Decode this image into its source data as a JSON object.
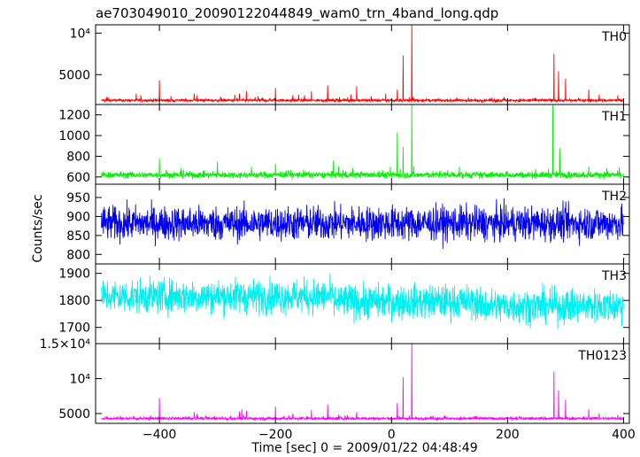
{
  "chart_data": {
    "type": "line",
    "title": "ae703049010_20090122044849_wam0_trn_4band_long.qdp",
    "xlabel": "Time [sec] 0 = 2009/01/22 04:48:49",
    "ylabel": "Counts/sec",
    "xlim": [
      -510,
      410
    ],
    "x_ticks": [
      -400,
      -200,
      0,
      200,
      400
    ],
    "x_tick_labels": [
      "−400",
      "−200",
      "0",
      "200",
      "400"
    ],
    "panels": [
      {
        "name": "TH0",
        "color": "#ff0000",
        "ylim": [
          1400,
          11000
        ],
        "y_ticks": [
          {
            "value": 5000,
            "label": "5000"
          },
          {
            "value": 10000,
            "label": "10⁴"
          }
        ],
        "baseline": 1900,
        "noise": 120,
        "shape": "spiky",
        "peaks": [
          [
            -440,
            2700
          ],
          [
            -432,
            2500
          ],
          [
            -400,
            4300
          ],
          [
            -380,
            2400
          ],
          [
            -340,
            2700
          ],
          [
            -335,
            2500
          ],
          [
            -270,
            2600
          ],
          [
            -262,
            2700
          ],
          [
            -250,
            3000
          ],
          [
            -230,
            2400
          ],
          [
            -200,
            3400
          ],
          [
            -170,
            2500
          ],
          [
            -160,
            2600
          ],
          [
            -150,
            2500
          ],
          [
            -138,
            3000
          ],
          [
            -110,
            3700
          ],
          [
            -70,
            2600
          ],
          [
            -60,
            3600
          ],
          [
            -35,
            2400
          ],
          [
            -10,
            2700
          ],
          [
            10,
            3200
          ],
          [
            20,
            7300
          ],
          [
            35,
            11000
          ],
          [
            280,
            7500
          ],
          [
            288,
            5400
          ],
          [
            300,
            4500
          ],
          [
            340,
            3200
          ],
          [
            358,
            2600
          ],
          [
            390,
            2500
          ]
        ]
      },
      {
        "name": "TH1",
        "color": "#00ee00",
        "ylim": [
          530,
          1300
        ],
        "y_ticks": [
          {
            "value": 600,
            "label": "600"
          },
          {
            "value": 800,
            "label": "800"
          },
          {
            "value": 1000,
            "label": "1000"
          },
          {
            "value": 1200,
            "label": "1200"
          }
        ],
        "baseline": 620,
        "noise": 22,
        "shape": "spiky",
        "peaks": [
          [
            -400,
            780
          ],
          [
            -300,
            750
          ],
          [
            -200,
            730
          ],
          [
            -100,
            760
          ],
          [
            10,
            1030
          ],
          [
            20,
            890
          ],
          [
            35,
            1300
          ],
          [
            278,
            1300
          ],
          [
            290,
            880
          ],
          [
            340,
            700
          ]
        ]
      },
      {
        "name": "TH2",
        "color": "#0000ee",
        "ylim": [
          775,
          985
        ],
        "y_ticks": [
          {
            "value": 800,
            "label": "800"
          },
          {
            "value": 850,
            "label": "850"
          },
          {
            "value": 900,
            "label": "900"
          },
          {
            "value": 950,
            "label": "950"
          }
        ],
        "baseline": 882,
        "noise": 32,
        "shape": "noise",
        "peaks": []
      },
      {
        "name": "TH3",
        "color": "#00eeee",
        "ylim": [
          1640,
          1935
        ],
        "y_ticks": [
          {
            "value": 1700,
            "label": "1700"
          },
          {
            "value": 1800,
            "label": "1800"
          },
          {
            "value": 1900,
            "label": "1900"
          }
        ],
        "baseline": 1800,
        "noise": 45,
        "shape": "noise-drift",
        "peaks": []
      },
      {
        "name": "TH0123",
        "color": "#ff00ff",
        "ylim": [
          3600,
          15000
        ],
        "y_ticks": [
          {
            "value": 5000,
            "label": "5000"
          },
          {
            "value": 10000,
            "label": "10⁴"
          },
          {
            "value": 15000,
            "label": "1.5×10⁴"
          }
        ],
        "baseline": 4300,
        "noise": 140,
        "shape": "spiky",
        "peaks": [
          [
            -400,
            7200
          ],
          [
            -340,
            5200
          ],
          [
            -335,
            5000
          ],
          [
            -262,
            5300
          ],
          [
            -258,
            5600
          ],
          [
            -250,
            5400
          ],
          [
            -200,
            6000
          ],
          [
            -170,
            5000
          ],
          [
            -138,
            5500
          ],
          [
            -110,
            6300
          ],
          [
            -60,
            5200
          ],
          [
            10,
            6500
          ],
          [
            20,
            10200
          ],
          [
            35,
            15000
          ],
          [
            280,
            11000
          ],
          [
            288,
            8300
          ],
          [
            300,
            7000
          ],
          [
            340,
            5600
          ],
          [
            358,
            5000
          ],
          [
            390,
            4800
          ]
        ]
      }
    ]
  }
}
